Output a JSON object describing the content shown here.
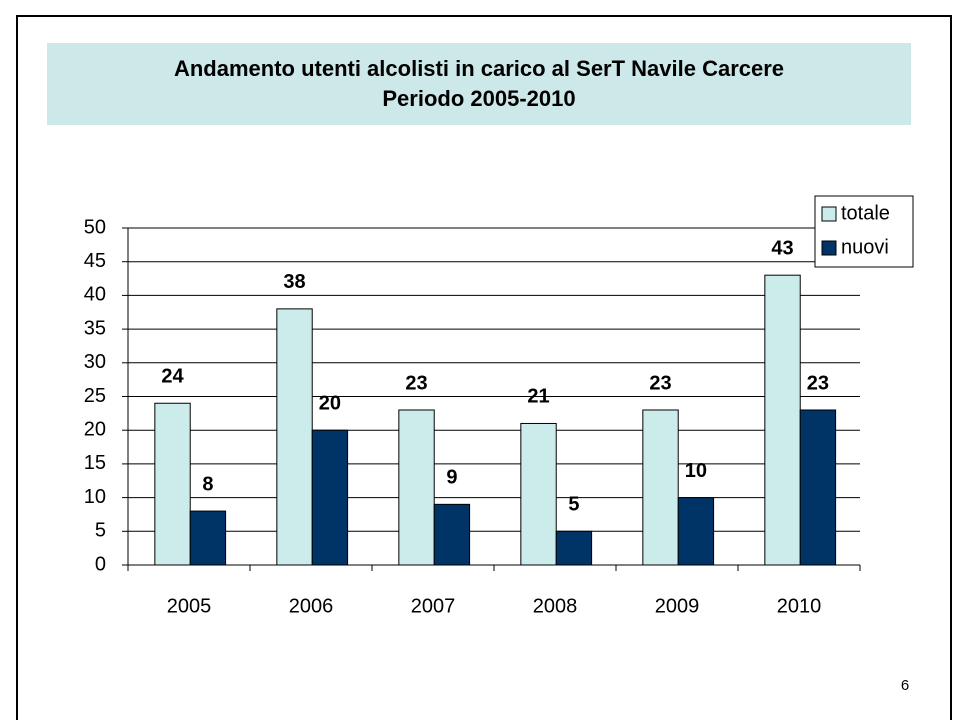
{
  "chart_data": {
    "type": "bar",
    "title": "Andamento utenti alcolisti in carico al SerT Navile Carcere",
    "subtitle": "Periodo 2005-2010",
    "categories": [
      "2005",
      "2006",
      "2007",
      "2008",
      "2009",
      "2010"
    ],
    "series": [
      {
        "name": "totale",
        "color": "#ccecec",
        "values": [
          24,
          38,
          23,
          21,
          23,
          43
        ]
      },
      {
        "name": "nuovi",
        "color": "#003366",
        "values": [
          8,
          20,
          9,
          5,
          10,
          23
        ]
      }
    ],
    "ylim": [
      0,
      50
    ],
    "yticks": [
      0,
      5,
      10,
      15,
      20,
      25,
      30,
      35,
      40,
      45,
      50
    ],
    "grid": true,
    "legend": "upper right"
  },
  "page_number": "6"
}
